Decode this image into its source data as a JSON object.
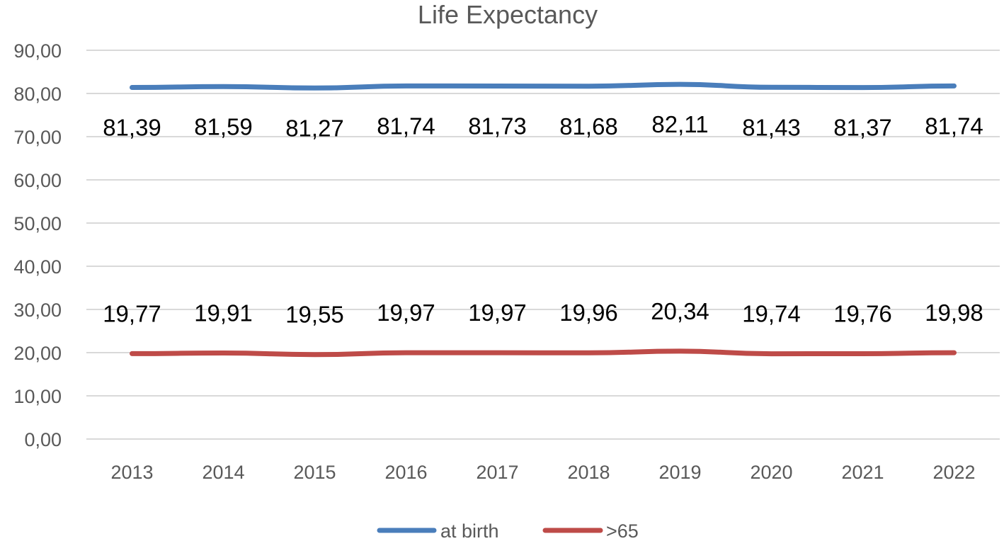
{
  "chart_data": {
    "type": "line",
    "title": "Life Expectancy",
    "xlabel": "",
    "ylabel": "",
    "categories": [
      "2013",
      "2014",
      "2015",
      "2016",
      "2017",
      "2018",
      "2019",
      "2020",
      "2021",
      "2022"
    ],
    "ylim": [
      0,
      90
    ],
    "yticks": [
      0,
      10,
      20,
      30,
      40,
      50,
      60,
      70,
      80,
      90
    ],
    "ytick_labels": [
      "0,00",
      "10,00",
      "20,00",
      "30,00",
      "40,00",
      "50,00",
      "60,00",
      "70,00",
      "80,00",
      "90,00"
    ],
    "grid": true,
    "legend_position": "bottom",
    "series": [
      {
        "name": "at birth",
        "color": "#4a7ebb",
        "values": [
          81.39,
          81.59,
          81.27,
          81.74,
          81.73,
          81.68,
          82.11,
          81.43,
          81.37,
          81.74
        ],
        "labels": [
          "81,39",
          "81,59",
          "81,27",
          "81,74",
          "81,73",
          "81,68",
          "82,11",
          "81,43",
          "81,37",
          "81,74"
        ]
      },
      {
        "name": ">65",
        "color": "#be4b48",
        "values": [
          19.77,
          19.91,
          19.55,
          19.97,
          19.97,
          19.96,
          20.34,
          19.74,
          19.76,
          19.98
        ],
        "labels": [
          "19,77",
          "19,91",
          "19,55",
          "19,97",
          "19,97",
          "19,96",
          "20,34",
          "19,74",
          "19,76",
          "19,98"
        ]
      }
    ]
  }
}
